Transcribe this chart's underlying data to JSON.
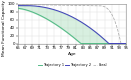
{
  "title": "",
  "xlabel": "Age",
  "ylabel": "Mean Functional Capacity (%)",
  "ylim": [
    0,
    100
  ],
  "xlim": [
    65,
    95
  ],
  "traj1_color": "#55bb88",
  "traj2_color": "#4444bb",
  "ideal_color": "#aaaaaa",
  "fill_color": "#aaddbb",
  "fill_alpha": 0.45,
  "legend_labels": [
    "Trajectory 1",
    "Trajectory 2",
    "Ideal"
  ],
  "font_size": 3.2,
  "tick_font_size": 2.8,
  "xtick_step": 2,
  "yticks": [
    0,
    20,
    40,
    60,
    80,
    100
  ]
}
